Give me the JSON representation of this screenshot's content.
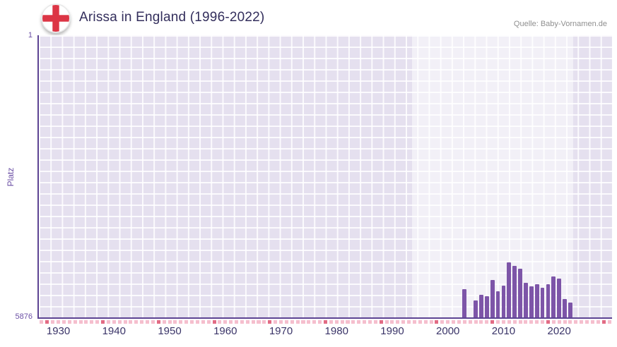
{
  "header": {
    "title": "Arissa in England (1996-2022)",
    "source": "Quelle: Baby-Vornamen.de"
  },
  "chart_data": {
    "type": "bar",
    "title": "Arissa in England (1996-2022)",
    "source": "Quelle: Baby-Vornamen.de",
    "ylabel": "Platz",
    "y_axis": {
      "min": 1,
      "max": 5876,
      "inverted": true,
      "top_label": "1",
      "bottom_label": "5876"
    },
    "x_axis": {
      "min_year": 1927,
      "max_year": 2029,
      "tick_labels": [
        "1930",
        "1940",
        "1950",
        "1960",
        "1970",
        "1980",
        "1990",
        "2000",
        "2010",
        "2020"
      ],
      "dark_tick_years": [
        1928,
        1938,
        1948,
        1958,
        1968,
        1978,
        1988,
        1998,
        2008,
        2018,
        2028
      ]
    },
    "highlight_band": {
      "start_year": 1994,
      "end_year": 2022
    },
    "legend": "none",
    "grid": "on",
    "colors": {
      "bar": "#7d55a8",
      "band": "rgba(255,255,255,0.5)",
      "axis": "#5d4493",
      "tick_light": "#f5bfce",
      "tick_dark": "#e26b84",
      "flag_red": "#dc3545"
    },
    "series": [
      {
        "name": "Platz",
        "points": [
          {
            "year": 2003,
            "rank": 5290
          },
          {
            "year": 2005,
            "rank": 5520
          },
          {
            "year": 2006,
            "rank": 5400
          },
          {
            "year": 2007,
            "rank": 5440
          },
          {
            "year": 2008,
            "rank": 5100
          },
          {
            "year": 2009,
            "rank": 5330
          },
          {
            "year": 2010,
            "rank": 5210
          },
          {
            "year": 2011,
            "rank": 4730
          },
          {
            "year": 2012,
            "rank": 4800
          },
          {
            "year": 2013,
            "rank": 4860
          },
          {
            "year": 2014,
            "rank": 5160
          },
          {
            "year": 2015,
            "rank": 5230
          },
          {
            "year": 2016,
            "rank": 5190
          },
          {
            "year": 2017,
            "rank": 5260
          },
          {
            "year": 2018,
            "rank": 5190
          },
          {
            "year": 2019,
            "rank": 5030
          },
          {
            "year": 2020,
            "rank": 5070
          },
          {
            "year": 2021,
            "rank": 5490
          },
          {
            "year": 2022,
            "rank": 5560
          }
        ]
      }
    ]
  }
}
